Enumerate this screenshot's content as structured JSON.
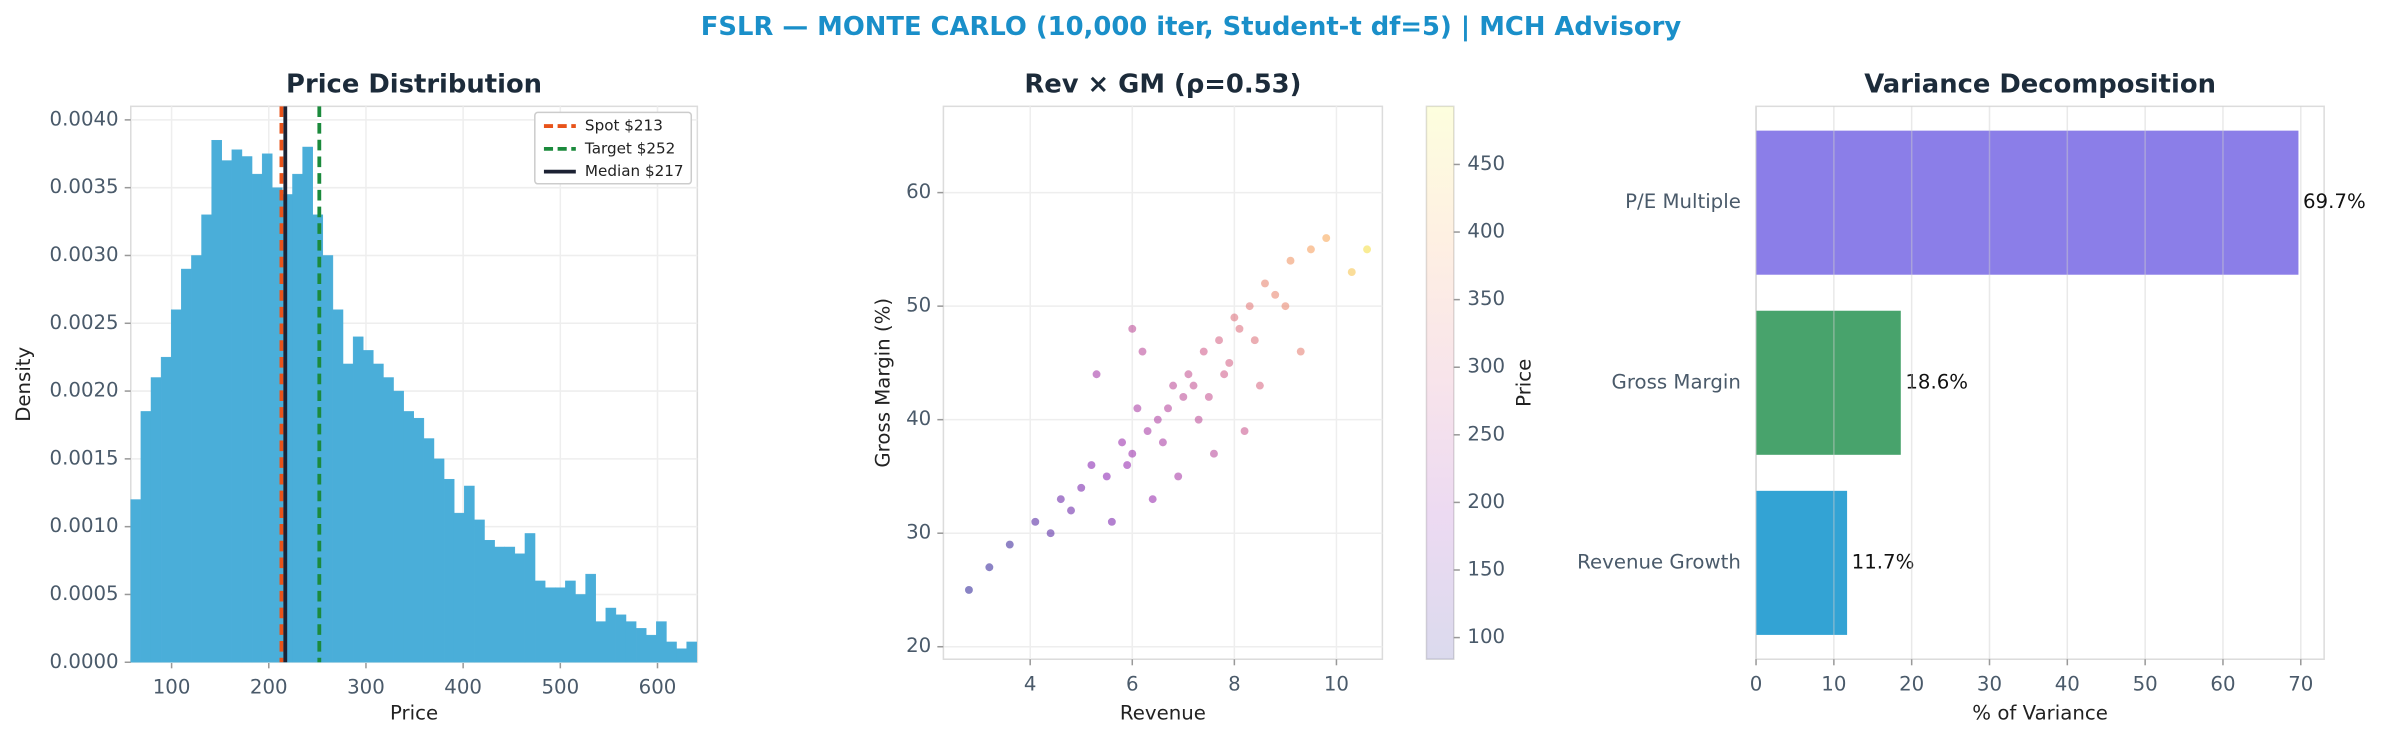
{
  "title": "FSLR — MONTE CARLO (10,000 iter, Student-t df=5) | MCH Advisory",
  "chart_data": [
    {
      "type": "histogram",
      "title": "Price Distribution",
      "x_label": "Price",
      "y_label": "Density",
      "color": "#4aaed9",
      "grid": true,
      "legend": "upper right",
      "bins": [
        58,
        68.4,
        78.8,
        89.2,
        99.6,
        110,
        120.4,
        130.8,
        141.2,
        151.6,
        162,
        172.4,
        182.8,
        193.2,
        203.6,
        214,
        224.4,
        234.8,
        245.2,
        255.6,
        266,
        276.4,
        286.8,
        297.2,
        307.6,
        318,
        328.4,
        338.8,
        349.2,
        359.6,
        370,
        380.4,
        390.8,
        401.2,
        411.6,
        422,
        432.4,
        442.8,
        453.2,
        463.6,
        474,
        484.4,
        494.8,
        505.2,
        515.6,
        526,
        536.4,
        546.8,
        557.2,
        567.6,
        578,
        588.4,
        598.8,
        609.2,
        619.6,
        630,
        640.4
      ],
      "values": [
        0.0012,
        0.00185,
        0.0021,
        0.00225,
        0.0026,
        0.0029,
        0.003,
        0.0033,
        0.00385,
        0.0037,
        0.00378,
        0.00373,
        0.0036,
        0.00375,
        0.0035,
        0.00345,
        0.0036,
        0.0038,
        0.0033,
        0.003,
        0.0026,
        0.0022,
        0.0024,
        0.0023,
        0.0022,
        0.0021,
        0.002,
        0.00185,
        0.0018,
        0.00165,
        0.0015,
        0.00135,
        0.0011,
        0.0013,
        0.00105,
        0.0009,
        0.00085,
        0.00085,
        0.0008,
        0.00095,
        0.0006,
        0.00055,
        0.00055,
        0.0006,
        0.0005,
        0.00065,
        0.0003,
        0.0004,
        0.00035,
        0.0003,
        0.00025,
        0.0002,
        0.0003,
        0.00015,
        0.0001,
        0.00015
      ],
      "xlim": [
        58,
        641
      ],
      "xticks": [
        100,
        200,
        300,
        400,
        500,
        600
      ],
      "ylim": [
        0,
        0.0041
      ],
      "yticks": [
        {
          "value": 0,
          "label": "0.0000"
        },
        {
          "value": 0.0005,
          "label": "0.0005"
        },
        {
          "value": 0.001,
          "label": "0.0010"
        },
        {
          "value": 0.0015,
          "label": "0.0015"
        },
        {
          "value": 0.002,
          "label": "0.0020"
        },
        {
          "value": 0.0025,
          "label": "0.0025"
        },
        {
          "value": 0.003,
          "label": "0.0030"
        },
        {
          "value": 0.0035,
          "label": "0.0035"
        },
        {
          "value": 0.004,
          "label": "0.0040"
        }
      ],
      "vlines": [
        {
          "name": "Spot $213",
          "value": 213,
          "color": "#e8531a",
          "style": "dashed"
        },
        {
          "name": "Target $252",
          "value": 252,
          "color": "#1b8a3c",
          "style": "dashed"
        },
        {
          "name": "Median $217",
          "value": 217,
          "color": "#1c2233",
          "style": "solid"
        }
      ]
    },
    {
      "type": "scatter",
      "title": "Rev × GM (ρ=0.53)",
      "x_label": "Revenue",
      "y_label": "Gross Margin (%)",
      "grid": true,
      "colormap": "plasma",
      "x": [
        5.2,
        6.1,
        6.8,
        7.4,
        8.0,
        8.6,
        9.1,
        5.8,
        6.5,
        7.1,
        7.7,
        8.3,
        4.6,
        5.5,
        6.3,
        7.0,
        7.9,
        8.8,
        9.5,
        4.1,
        5.0,
        6.0,
        6.7,
        7.3,
        8.1,
        9.0,
        3.6,
        4.8,
        5.9,
        6.6,
        7.2,
        7.8,
        8.4,
        9.8,
        10.3,
        5.3,
        6.2,
        6.9,
        7.5,
        8.2,
        3.2,
        4.4,
        5.6,
        6.4,
        7.6,
        8.5,
        9.3,
        10.6,
        2.8,
        6.0
      ],
      "y": [
        36,
        41,
        43,
        46,
        49,
        52,
        54,
        38,
        40,
        44,
        47,
        50,
        33,
        35,
        39,
        42,
        45,
        51,
        55,
        31,
        34,
        37,
        41,
        40,
        48,
        50,
        29,
        32,
        36,
        38,
        43,
        44,
        47,
        56,
        53,
        44,
        46,
        35,
        42,
        39,
        27,
        30,
        31,
        33,
        37,
        43,
        46,
        55,
        25,
        48
      ],
      "c": [
        178,
        225,
        254,
        284,
        315,
        345,
        368,
        203,
        232,
        267,
        297,
        327,
        147,
        182,
        222,
        255,
        294,
        346,
        384,
        124,
        163,
        205,
        242,
        254,
        313,
        347,
        101,
        148,
        197,
        226,
        265,
        286,
        317,
        396,
        430,
        216,
        251,
        221,
        269,
        275,
        95,
        128,
        166,
        198,
        249,
        302,
        337,
        460,
        90,
        254
      ],
      "xlim": [
        2.3,
        10.9
      ],
      "xticks": [
        4,
        6,
        8,
        10
      ],
      "ylim": [
        18.9,
        67.6
      ],
      "yticks": [
        20,
        30,
        40,
        50,
        60
      ],
      "colorbar": {
        "label": "Price",
        "lim": [
          84,
          493
        ],
        "ticks": [
          100,
          150,
          200,
          250,
          300,
          350,
          400,
          450
        ]
      }
    },
    {
      "type": "barh",
      "title": "Variance Decomposition",
      "x_label": "% of Variance",
      "grid": true,
      "categories": [
        "Revenue Growth",
        "Gross Margin",
        "P/E Multiple"
      ],
      "values": [
        11.7,
        18.6,
        69.7
      ],
      "value_labels": [
        "11.7%",
        "18.6%",
        "69.7%"
      ],
      "colors": [
        "#33a3d4",
        "#48a36c",
        "#8b7ee8"
      ],
      "xlim": [
        0,
        73
      ],
      "xticks": [
        0,
        10,
        20,
        30,
        40,
        50,
        60,
        70
      ]
    }
  ]
}
